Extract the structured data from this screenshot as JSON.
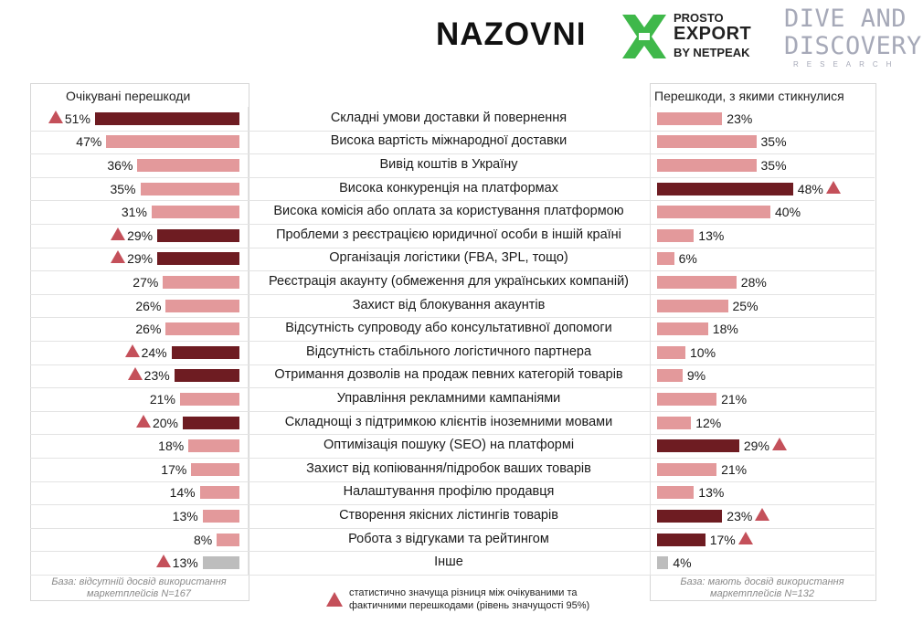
{
  "logos": {
    "nazovni": "NAZOVNI",
    "prosto_line1": "PROSTO",
    "prosto_line2": "EXPORT",
    "prosto_line3": "BY NETPEAK",
    "dive_line1": "DIVE AND",
    "dive_line2": "DISCOVERY",
    "dive_line3": "RESEARCH"
  },
  "colors": {
    "significant": "#6e1c22",
    "regular": "#e3999b",
    "other": "#bdbdbd",
    "marker": "#c4505a"
  },
  "chart_data": {
    "type": "bar",
    "left_title": "Очікувані перешкоди",
    "right_title": "Перешкоди, з якими стикнулися",
    "categories": [
      "Складні умови доставки й повернення",
      "Висока вартість міжнародної доставки",
      "Вивід коштів в Україну",
      "Висока конкуренція на платформах",
      "Висока комісія або оплата за користування платформою",
      "Проблеми з реєстрацією юридичної особи в іншій країні",
      "Організація логістики (FBA, 3PL, тощо)",
      "Реєстрація акаунту (обмеження для українських компаній)",
      "Захист від блокування акаунтів",
      "Відсутність супроводу або консультативної допомоги",
      "Відсутність стабільного логістичного партнера",
      "Отримання дозволів на продаж певних категорій товарів",
      "Управління рекламними кампаніями",
      "Складнощі з підтримкою клієнтів іноземними мовами",
      "Оптимізація пошуку (SEO) на платформі",
      "Захист від копіювання/підробок ваших товарів",
      "Налаштування профілю продавця",
      "Створення якісних лістингів товарів",
      "Робота з відгуками та рейтингом",
      "Інше"
    ],
    "series": [
      {
        "name": "Очікувані перешкоди",
        "values": [
          51,
          47,
          36,
          35,
          31,
          29,
          29,
          27,
          26,
          26,
          24,
          23,
          21,
          20,
          18,
          17,
          14,
          13,
          8,
          13
        ],
        "labels": [
          "51%",
          "47%",
          "36%",
          "35%",
          "31%",
          "29%",
          "29%",
          "27%",
          "26%",
          "26%",
          "24%",
          "23%",
          "21%",
          "20%",
          "18%",
          "17%",
          "14%",
          "13%",
          "8%",
          "13%"
        ],
        "significant": [
          true,
          false,
          false,
          false,
          false,
          true,
          true,
          false,
          false,
          false,
          true,
          true,
          false,
          true,
          false,
          false,
          false,
          false,
          false,
          true
        ]
      },
      {
        "name": "Перешкоди, з якими стикнулися",
        "values": [
          23,
          35,
          35,
          48,
          40,
          13,
          6,
          28,
          25,
          18,
          10,
          9,
          21,
          12,
          29,
          21,
          13,
          23,
          17,
          4
        ],
        "labels": [
          "23%",
          "35%",
          "35%",
          "48%",
          "40%",
          "13%",
          "6%",
          "28%",
          "25%",
          "18%",
          "10%",
          "9%",
          "21%",
          "12%",
          "29%",
          "21%",
          "13%",
          "23%",
          "17%",
          "4%"
        ],
        "significant": [
          false,
          false,
          false,
          true,
          false,
          false,
          false,
          false,
          false,
          false,
          false,
          false,
          false,
          false,
          true,
          false,
          false,
          true,
          true,
          false
        ]
      }
    ],
    "other_index": 19,
    "left_base_note": "База: відсутній досвід використання маркетплейсів N=167",
    "right_base_note": "База: мають досвід використання маркетплейсів N=132",
    "legend_note": "статистично значуща різниця між очікуваними та фактичними перешкодами (рівень значущості 95%)"
  }
}
